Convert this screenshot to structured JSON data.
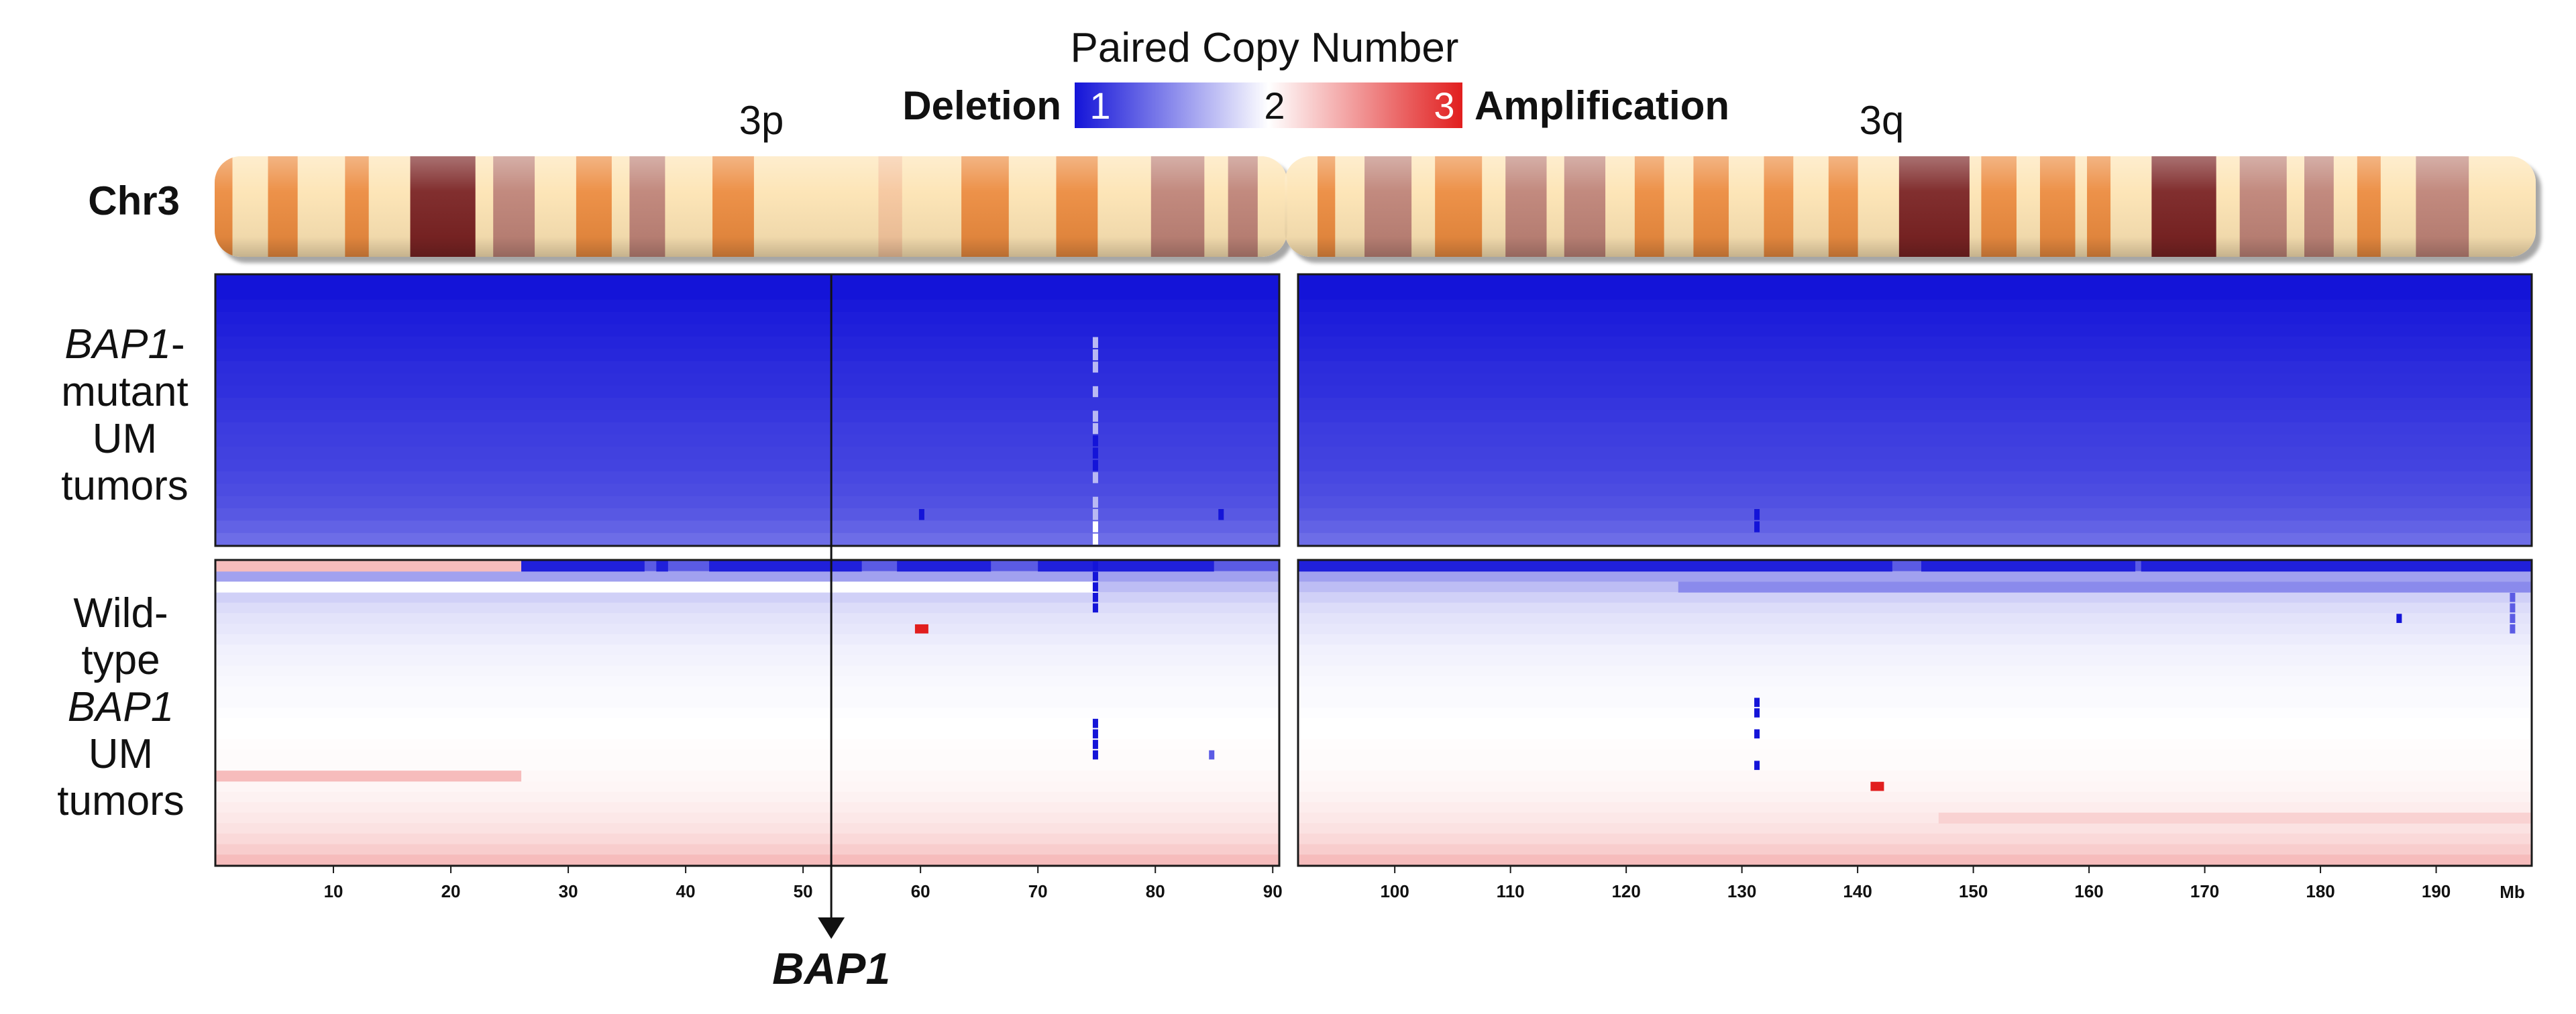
{
  "chart_data": {
    "type": "heatmap",
    "title": "Paired Copy Number",
    "chromosome_label": "Chr3",
    "legend": {
      "low_label": "Deletion",
      "high_label": "Amplification",
      "ticks": [
        "1",
        "2",
        "3"
      ],
      "range": [
        1,
        3
      ],
      "colors": {
        "low": "#1414d8",
        "mid": "#ffffff",
        "high": "#e11e1e"
      }
    },
    "arms": [
      {
        "name": "3p",
        "range_mb": [
          0,
          90.5
        ]
      },
      {
        "name": "3q",
        "range_mb": [
          91.7,
          198.2
        ]
      }
    ],
    "x_axis": {
      "unit": "Mb",
      "range": [
        0,
        198.2
      ],
      "ticks": [
        10,
        20,
        30,
        40,
        50,
        60,
        70,
        80,
        90,
        100,
        110,
        120,
        130,
        140,
        150,
        160,
        170,
        180,
        190
      ]
    },
    "marker": {
      "gene": "BAP1",
      "position_mb": 52.4
    },
    "cytobands": [
      {
        "start": 0,
        "end": 1.5,
        "stain": "gpos50"
      },
      {
        "start": 1.5,
        "end": 4.5,
        "stain": "gneg"
      },
      {
        "start": 4.5,
        "end": 7.0,
        "stain": "gpos50"
      },
      {
        "start": 7.0,
        "end": 11.0,
        "stain": "gneg"
      },
      {
        "start": 11.0,
        "end": 13.0,
        "stain": "gpos50"
      },
      {
        "start": 13.0,
        "end": 16.5,
        "stain": "gneg"
      },
      {
        "start": 16.5,
        "end": 22.0,
        "stain": "gpos100"
      },
      {
        "start": 22.0,
        "end": 23.5,
        "stain": "gneg"
      },
      {
        "start": 23.5,
        "end": 27.0,
        "stain": "gpos75"
      },
      {
        "start": 27.0,
        "end": 30.5,
        "stain": "gneg"
      },
      {
        "start": 30.5,
        "end": 33.5,
        "stain": "gpos50"
      },
      {
        "start": 33.5,
        "end": 35.0,
        "stain": "gneg"
      },
      {
        "start": 35.0,
        "end": 38.0,
        "stain": "gpos75"
      },
      {
        "start": 38.0,
        "end": 42.0,
        "stain": "gneg"
      },
      {
        "start": 42.0,
        "end": 45.5,
        "stain": "gpos50"
      },
      {
        "start": 45.5,
        "end": 56.0,
        "stain": "gneg"
      },
      {
        "start": 56.0,
        "end": 58.0,
        "stain": "gpos25"
      },
      {
        "start": 58.0,
        "end": 63.0,
        "stain": "gneg"
      },
      {
        "start": 63.0,
        "end": 67.0,
        "stain": "gpos50"
      },
      {
        "start": 67.0,
        "end": 71.0,
        "stain": "gneg"
      },
      {
        "start": 71.0,
        "end": 74.5,
        "stain": "gpos50"
      },
      {
        "start": 74.5,
        "end": 79.0,
        "stain": "gneg"
      },
      {
        "start": 79.0,
        "end": 83.5,
        "stain": "gpos75"
      },
      {
        "start": 83.5,
        "end": 85.5,
        "stain": "gneg"
      },
      {
        "start": 85.5,
        "end": 88.0,
        "stain": "gpos75"
      },
      {
        "start": 88.0,
        "end": 90.5,
        "stain": "gneg"
      },
      {
        "start": 91.7,
        "end": 94.5,
        "stain": "gneg"
      },
      {
        "start": 94.5,
        "end": 96.0,
        "stain": "gpos50"
      },
      {
        "start": 96.0,
        "end": 98.5,
        "stain": "gneg"
      },
      {
        "start": 98.5,
        "end": 102.5,
        "stain": "gpos75"
      },
      {
        "start": 102.5,
        "end": 104.5,
        "stain": "gneg"
      },
      {
        "start": 104.5,
        "end": 108.5,
        "stain": "gpos50"
      },
      {
        "start": 108.5,
        "end": 110.5,
        "stain": "gneg"
      },
      {
        "start": 110.5,
        "end": 114.0,
        "stain": "gpos75"
      },
      {
        "start": 114.0,
        "end": 115.5,
        "stain": "gneg"
      },
      {
        "start": 115.5,
        "end": 119.0,
        "stain": "gpos75"
      },
      {
        "start": 119.0,
        "end": 121.5,
        "stain": "gneg"
      },
      {
        "start": 121.5,
        "end": 124.0,
        "stain": "gpos50"
      },
      {
        "start": 124.0,
        "end": 126.5,
        "stain": "gneg"
      },
      {
        "start": 126.5,
        "end": 129.5,
        "stain": "gpos50"
      },
      {
        "start": 129.5,
        "end": 132.5,
        "stain": "gneg"
      },
      {
        "start": 132.5,
        "end": 135.0,
        "stain": "gpos50"
      },
      {
        "start": 135.0,
        "end": 138.0,
        "stain": "gneg"
      },
      {
        "start": 138.0,
        "end": 140.5,
        "stain": "gpos50"
      },
      {
        "start": 140.5,
        "end": 144.0,
        "stain": "gneg"
      },
      {
        "start": 144.0,
        "end": 150.0,
        "stain": "gpos100"
      },
      {
        "start": 150.0,
        "end": 151.0,
        "stain": "gneg"
      },
      {
        "start": 151.0,
        "end": 154.0,
        "stain": "gpos50"
      },
      {
        "start": 154.0,
        "end": 156.0,
        "stain": "gneg"
      },
      {
        "start": 156.0,
        "end": 159.0,
        "stain": "gpos50"
      },
      {
        "start": 159.0,
        "end": 160.0,
        "stain": "gneg"
      },
      {
        "start": 160.0,
        "end": 162.0,
        "stain": "gpos50"
      },
      {
        "start": 162.0,
        "end": 165.5,
        "stain": "gneg"
      },
      {
        "start": 165.5,
        "end": 171.0,
        "stain": "gpos100"
      },
      {
        "start": 171.0,
        "end": 173.0,
        "stain": "gneg"
      },
      {
        "start": 173.0,
        "end": 177.0,
        "stain": "gpos75"
      },
      {
        "start": 177.0,
        "end": 178.5,
        "stain": "gneg"
      },
      {
        "start": 178.5,
        "end": 181.0,
        "stain": "gpos75"
      },
      {
        "start": 181.0,
        "end": 183.0,
        "stain": "gneg"
      },
      {
        "start": 183.0,
        "end": 185.0,
        "stain": "gpos50"
      },
      {
        "start": 185.0,
        "end": 188.0,
        "stain": "gneg"
      },
      {
        "start": 188.0,
        "end": 192.5,
        "stain": "gpos75"
      },
      {
        "start": 192.5,
        "end": 198.2,
        "stain": "gneg"
      }
    ],
    "groups": [
      {
        "label_lines": [
          "BAP1-",
          "mutant",
          "UM",
          "tumors"
        ],
        "italic_word": "BAP1",
        "copy_number_range": [
          1.0,
          1.38
        ],
        "baseline_values": [
          1.0,
          1.0,
          1.02,
          1.04,
          1.05,
          1.07,
          1.08,
          1.1,
          1.11,
          1.12,
          1.14,
          1.15,
          1.17,
          1.18,
          1.19,
          1.2,
          1.22,
          1.24,
          1.26,
          1.29,
          1.33,
          1.38
        ]
      },
      {
        "label_lines": [
          "Wild-",
          "type",
          "BAP1",
          "UM",
          "tumors"
        ],
        "italic_word": "BAP1",
        "copy_number_range": [
          1.3,
          2.3
        ],
        "baseline_values": [
          1.3,
          1.6,
          1.72,
          1.8,
          1.85,
          1.88,
          1.9,
          1.92,
          1.94,
          1.95,
          1.96,
          1.97,
          1.98,
          1.98,
          1.99,
          2.0,
          2.0,
          2.01,
          2.02,
          2.02,
          2.03,
          2.04,
          2.06,
          2.08,
          2.1,
          2.13,
          2.17,
          2.22,
          2.3
        ],
        "segments": [
          {
            "row": 0,
            "start": 0,
            "end": 26,
            "value": 2.3
          },
          {
            "row": 0,
            "start": 26,
            "end": 36.5,
            "value": 1.05
          },
          {
            "row": 0,
            "start": 37.5,
            "end": 38.5,
            "value": 1.05
          },
          {
            "row": 0,
            "start": 42,
            "end": 55,
            "value": 1.05
          },
          {
            "row": 0,
            "start": 58,
            "end": 66,
            "value": 1.05
          },
          {
            "row": 0,
            "start": 70,
            "end": 85,
            "value": 1.05
          },
          {
            "row": 0,
            "start": 91.7,
            "end": 143,
            "value": 1.05
          },
          {
            "row": 0,
            "start": 145.5,
            "end": 164,
            "value": 1.05
          },
          {
            "row": 0,
            "start": 164.5,
            "end": 198.2,
            "value": 1.05
          },
          {
            "row": 2,
            "start": 0,
            "end": 75,
            "value": 2.0
          },
          {
            "row": 2,
            "start": 124.5,
            "end": 198.2,
            "value": 1.5
          },
          {
            "row": 20,
            "start": 0,
            "end": 26,
            "value": 2.3
          },
          {
            "row": 24,
            "start": 147,
            "end": 198.2,
            "value": 2.2
          }
        ]
      }
    ],
    "annotations": [
      {
        "group": 0,
        "mb": 74.9,
        "rows": [
          5,
          6,
          7,
          9,
          11,
          12,
          16,
          18,
          19
        ],
        "value": 1.7
      },
      {
        "group": 0,
        "mb": 74.9,
        "rows": [
          13,
          14,
          15
        ],
        "value": 1.0
      },
      {
        "group": 0,
        "mb": 74.9,
        "rows": [
          20,
          21
        ],
        "value": 2.0
      },
      {
        "group": 0,
        "mb": 60.1,
        "rows": [
          19
        ],
        "value": 1.0
      },
      {
        "group": 0,
        "mb": 85.6,
        "rows": [
          19
        ],
        "value": 1.0
      },
      {
        "group": 0,
        "mb": 131.3,
        "rows": [
          19,
          20
        ],
        "value": 1.0
      },
      {
        "group": 1,
        "mb": 74.9,
        "rows": [
          0,
          1,
          2,
          3,
          4,
          15,
          16,
          17,
          18
        ],
        "value": 1.0
      },
      {
        "group": 1,
        "mb": 60.1,
        "rows": [
          6
        ],
        "value": 3.0
      },
      {
        "group": 1,
        "mb": 84.8,
        "rows": [
          18
        ],
        "value": 1.3
      },
      {
        "group": 1,
        "mb": 131.3,
        "rows": [
          13,
          14,
          16,
          19
        ],
        "value": 1.0
      },
      {
        "group": 1,
        "mb": 186.8,
        "rows": [
          5
        ],
        "value": 1.0
      },
      {
        "group": 1,
        "mb": 196.6,
        "rows": [
          3,
          4,
          5,
          6
        ],
        "value": 1.3
      },
      {
        "group": 1,
        "mb": 141.7,
        "rows": [
          21
        ],
        "value": 3.0
      }
    ]
  }
}
